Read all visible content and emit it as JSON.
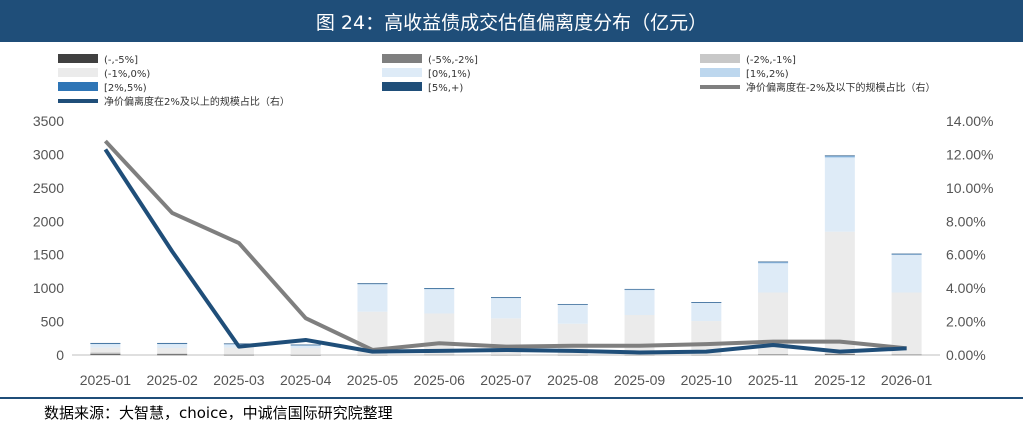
{
  "title": "图 24：高收益债成交估值偏离度分布（亿元）",
  "source": "数据来源：大智慧，choice，中诚信国际研究院整理",
  "colors": {
    "title_bg": "#1f4e79",
    "bucket_1": "#404040",
    "bucket_2": "#7f7f7f",
    "bucket_3": "#c8c8c8",
    "bucket_4": "#ebebeb",
    "bucket_5": "#deebf7",
    "bucket_6": "#bdd7ee",
    "bucket_7": "#2e75b6",
    "bucket_8": "#1f4e79",
    "line_up": "#1f4e79",
    "line_down": "#7f7f7f"
  },
  "chart_data": {
    "type": "bar+line",
    "categories": [
      "2025-01",
      "2025-02",
      "2025-03",
      "2025-04",
      "2025-05",
      "2025-06",
      "2025-07",
      "2025-08",
      "2025-09",
      "2025-10",
      "2025-11",
      "2025-12",
      "2026-01"
    ],
    "y_left_ticks": [
      "0",
      "500",
      "1000",
      "1500",
      "2000",
      "2500",
      "3000",
      "3500"
    ],
    "y_left_range": [
      0,
      3500
    ],
    "y_right_ticks": [
      "0.00%",
      "2.00%",
      "4.00%",
      "6.00%",
      "8.00%",
      "10.00%",
      "12.00%",
      "14.00%"
    ],
    "y_right_range": [
      0,
      14
    ],
    "legend": [
      "(-,-5%]",
      "(-5%,-2%]",
      "(-2%,-1%]",
      "(-1%,0%)",
      "[0%,1%)",
      "[1%,2%)",
      "[2%,5%)",
      "[5%,+)",
      "净价偏离度在2%及以上的规模占比（右）",
      "净价偏离度在-2%及以下的规模占比（右）"
    ],
    "bar_series": [
      {
        "name": "(-,-5%]",
        "values": [
          10,
          5,
          3,
          2,
          0,
          0,
          0,
          0,
          0,
          0,
          0,
          0,
          0
        ]
      },
      {
        "name": "(-5%,-2%]",
        "values": [
          10,
          10,
          3,
          2,
          3,
          6,
          3,
          3,
          3,
          3,
          7,
          15,
          5
        ]
      },
      {
        "name": "(-2%,-1%]",
        "values": [
          20,
          10,
          5,
          5,
          5,
          5,
          5,
          5,
          5,
          5,
          8,
          10,
          10
        ]
      },
      {
        "name": "(-1%,0%)",
        "values": [
          70,
          80,
          100,
          95,
          640,
          610,
          540,
          460,
          590,
          500,
          920,
          1820,
          920
        ]
      },
      {
        "name": "[0%,1%)",
        "values": [
          50,
          55,
          50,
          40,
          400,
          360,
          300,
          280,
          370,
          270,
          430,
          1100,
          560
        ]
      },
      {
        "name": "[1%,2%)",
        "values": [
          10,
          10,
          5,
          5,
          20,
          15,
          15,
          10,
          15,
          10,
          20,
          25,
          15
        ]
      },
      {
        "name": "[2%,5%)",
        "values": [
          5,
          5,
          3,
          3,
          2,
          3,
          2,
          3,
          3,
          2,
          7,
          8,
          3
        ]
      },
      {
        "name": "[5%,+)",
        "values": [
          5,
          5,
          3,
          3,
          2,
          2,
          2,
          2,
          2,
          2,
          5,
          7,
          2
        ]
      }
    ],
    "line_series": [
      {
        "name": "净价偏离度在2%及以上的规模占比（右）",
        "values": [
          12.3,
          6.2,
          0.5,
          0.9,
          0.2,
          0.25,
          0.3,
          0.25,
          0.15,
          0.2,
          0.6,
          0.2,
          0.4
        ]
      },
      {
        "name": "净价偏离度在-2%及以下的规模占比（右）",
        "values": [
          12.8,
          8.5,
          6.7,
          2.2,
          0.3,
          0.7,
          0.5,
          0.55,
          0.55,
          0.65,
          0.8,
          0.8,
          0.4
        ]
      }
    ]
  }
}
